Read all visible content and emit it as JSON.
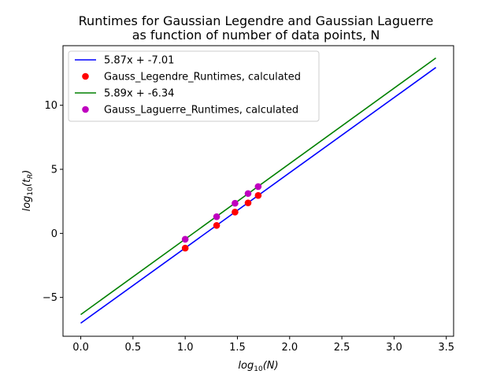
{
  "chart_data": {
    "type": "line",
    "title": "Runtimes for Gaussian Legendre and Gaussian Laguerre",
    "subtitle": "as function of number of data points, N",
    "xlabel": "log10(N)",
    "ylabel": "log10(tR)",
    "xlim": [
      -0.17,
      3.57
    ],
    "ylim": [
      -8.03,
      14.65
    ],
    "xticks": [
      0.0,
      0.5,
      1.0,
      1.5,
      2.0,
      2.5,
      3.0,
      3.5
    ],
    "xtick_labels": [
      "0.0",
      "0.5",
      "1.0",
      "1.5",
      "2.0",
      "2.5",
      "3.0",
      "3.5"
    ],
    "yticks": [
      -5,
      0,
      5,
      10
    ],
    "ytick_labels": [
      "−5",
      "0",
      "5",
      "10"
    ],
    "grid": false,
    "legend_position": "upper-left",
    "series": [
      {
        "name": "5.87x + -7.01",
        "type": "line",
        "color": "#0000ff",
        "x": [
          0.0,
          3.4
        ],
        "y": [
          -7.01,
          12.95
        ]
      },
      {
        "name": "Gauss_Legendre_Runtimes, calculated",
        "type": "scatter",
        "color": "#ff0000",
        "x": [
          1.0,
          1.301,
          1.477,
          1.602,
          1.699
        ],
        "y": [
          -1.15,
          0.62,
          1.66,
          2.38,
          2.96
        ]
      },
      {
        "name": "5.89x + -6.34",
        "type": "line",
        "color": "#008000",
        "x": [
          0.0,
          3.4
        ],
        "y": [
          -6.34,
          13.69
        ]
      },
      {
        "name": "Gauss_Laguerre_Runtimes, calculated",
        "type": "scatter",
        "color": "#bf00bf",
        "x": [
          1.0,
          1.301,
          1.477,
          1.602,
          1.699
        ],
        "y": [
          -0.46,
          1.3,
          2.35,
          3.11,
          3.65
        ]
      }
    ]
  }
}
